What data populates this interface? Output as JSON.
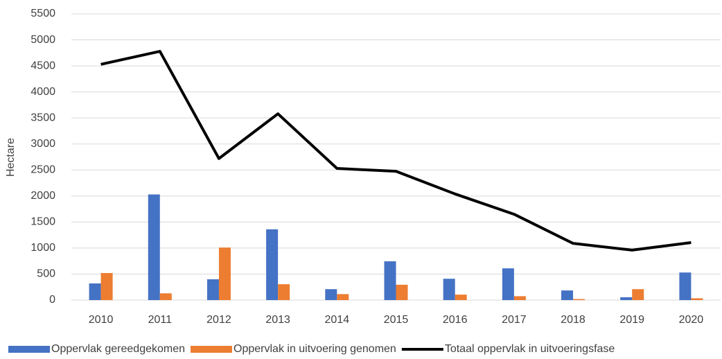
{
  "chart_data": {
    "type": "combo",
    "y_label": "Hectare",
    "categories": [
      "2010",
      "2011",
      "2012",
      "2013",
      "2014",
      "2015",
      "2016",
      "2017",
      "2018",
      "2019",
      "2020"
    ],
    "series": [
      {
        "name": "Oppervlak gereedgekomen",
        "type": "bar",
        "color": "#4472c4",
        "values": [
          320,
          2030,
          400,
          1360,
          210,
          745,
          410,
          610,
          185,
          55,
          530
        ]
      },
      {
        "name": "Oppervlak in uitvoering genomen",
        "type": "bar",
        "color": "#ed7d31",
        "values": [
          520,
          130,
          1010,
          305,
          115,
          295,
          105,
          75,
          20,
          210,
          35
        ]
      },
      {
        "name": "Totaal oppervlak in uitvoeringsfase",
        "type": "line",
        "color": "#000000",
        "values": [
          4530,
          4780,
          2720,
          3580,
          2530,
          2475,
          2040,
          1650,
          1090,
          960,
          1105
        ]
      }
    ],
    "ylim": [
      0,
      5500
    ],
    "yticks": [
      0,
      500,
      1000,
      1500,
      2000,
      2500,
      3000,
      3500,
      4000,
      4500,
      5000,
      5500
    ],
    "grid": true,
    "legend": "bottom"
  }
}
